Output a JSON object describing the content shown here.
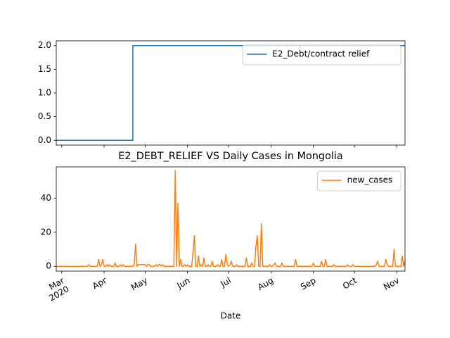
{
  "chart_data": [
    {
      "type": "line",
      "x": [
        0,
        56,
        56,
        255
      ],
      "series": [
        {
          "name": "E2_Debt/contract relief",
          "color": "#1f77b4",
          "values": [
            0,
            0,
            2,
            2
          ]
        }
      ],
      "xlim": [
        0,
        255
      ],
      "xticks": [
        4,
        35,
        65,
        96,
        126,
        157,
        188,
        218,
        249
      ],
      "ylim": [
        -0.1,
        2.1
      ],
      "yticks": [
        {
          "value": 0,
          "label": "0.0"
        },
        0.5,
        {
          "value": 1,
          "label": "1.0"
        },
        1.5,
        {
          "value": 2,
          "label": "2.0"
        }
      ],
      "grid": false,
      "legend": "upper right"
    },
    {
      "type": "line",
      "title": "E2_DEBT_RELIEF VS Daily Cases in Mongolia",
      "xlabel": "Date",
      "series": [
        {
          "name": "new_cases",
          "color": "#ff7f0e",
          "values": [
            0,
            0,
            0,
            0,
            0,
            0,
            0,
            0,
            0,
            0,
            0,
            0,
            0,
            0,
            0,
            0,
            0,
            0,
            0,
            0,
            0,
            0,
            0,
            0,
            1,
            0,
            0,
            0,
            0,
            0,
            0,
            4,
            0,
            1,
            4,
            0,
            0,
            1,
            0,
            1,
            0,
            0,
            0,
            2,
            0,
            0,
            0,
            1,
            0,
            1,
            0,
            0,
            0,
            0,
            0,
            0,
            0,
            1,
            13,
            0,
            1,
            1,
            1,
            1,
            1,
            1,
            0,
            1,
            1,
            0,
            0,
            0,
            0,
            1,
            0,
            1,
            1,
            0,
            1,
            0,
            0,
            0,
            0,
            0,
            0,
            0,
            0,
            56,
            0,
            37,
            0,
            4,
            0,
            0,
            1,
            0,
            1,
            0,
            0,
            0,
            8,
            18,
            0,
            0,
            6,
            0,
            1,
            0,
            5,
            0,
            0,
            1,
            0,
            0,
            3,
            0,
            0,
            0,
            1,
            0,
            0,
            4,
            0,
            0,
            7,
            1,
            0,
            1,
            3,
            0,
            0,
            0,
            1,
            0,
            0,
            0,
            0,
            0,
            0,
            5,
            0,
            0,
            0,
            2,
            0,
            0,
            12,
            18,
            0,
            0,
            25,
            0,
            0,
            0,
            0,
            0,
            1,
            0,
            0,
            1,
            2,
            0,
            0,
            0,
            0,
            2,
            0,
            0,
            0,
            0,
            0,
            0,
            0,
            0,
            0,
            4,
            0,
            0,
            0,
            0,
            0,
            0,
            0,
            0,
            0,
            0,
            0,
            0,
            2,
            0,
            0,
            0,
            0,
            0,
            3,
            0,
            0,
            4,
            0,
            0,
            0,
            0,
            0,
            1,
            0,
            0,
            0,
            0,
            0,
            0,
            0,
            0,
            0,
            1,
            0,
            0,
            0,
            1,
            0,
            0,
            0,
            0,
            0,
            0,
            0,
            0,
            0,
            0,
            0,
            0,
            0,
            0,
            0,
            0,
            1,
            3,
            0,
            0,
            0,
            0,
            0,
            4,
            1,
            0,
            0,
            0,
            0,
            10,
            0,
            0,
            0,
            0,
            0,
            6,
            0,
            3
          ]
        }
      ],
      "xlim": [
        0,
        255
      ],
      "xticks": [
        {
          "value": 4,
          "label": "Mar\n2020"
        },
        {
          "value": 35,
          "label": "Apr"
        },
        {
          "value": 65,
          "label": "May"
        },
        {
          "value": 96,
          "label": "Jun"
        },
        {
          "value": 126,
          "label": "Jul"
        },
        {
          "value": 157,
          "label": "Aug"
        },
        {
          "value": 188,
          "label": "Sep"
        },
        {
          "value": 218,
          "label": "Oct"
        },
        {
          "value": 249,
          "label": "Nov"
        }
      ],
      "ylim": [
        -2.8,
        58.3
      ],
      "yticks": [
        0,
        20,
        40
      ],
      "grid": false,
      "legend": "upper right"
    }
  ]
}
